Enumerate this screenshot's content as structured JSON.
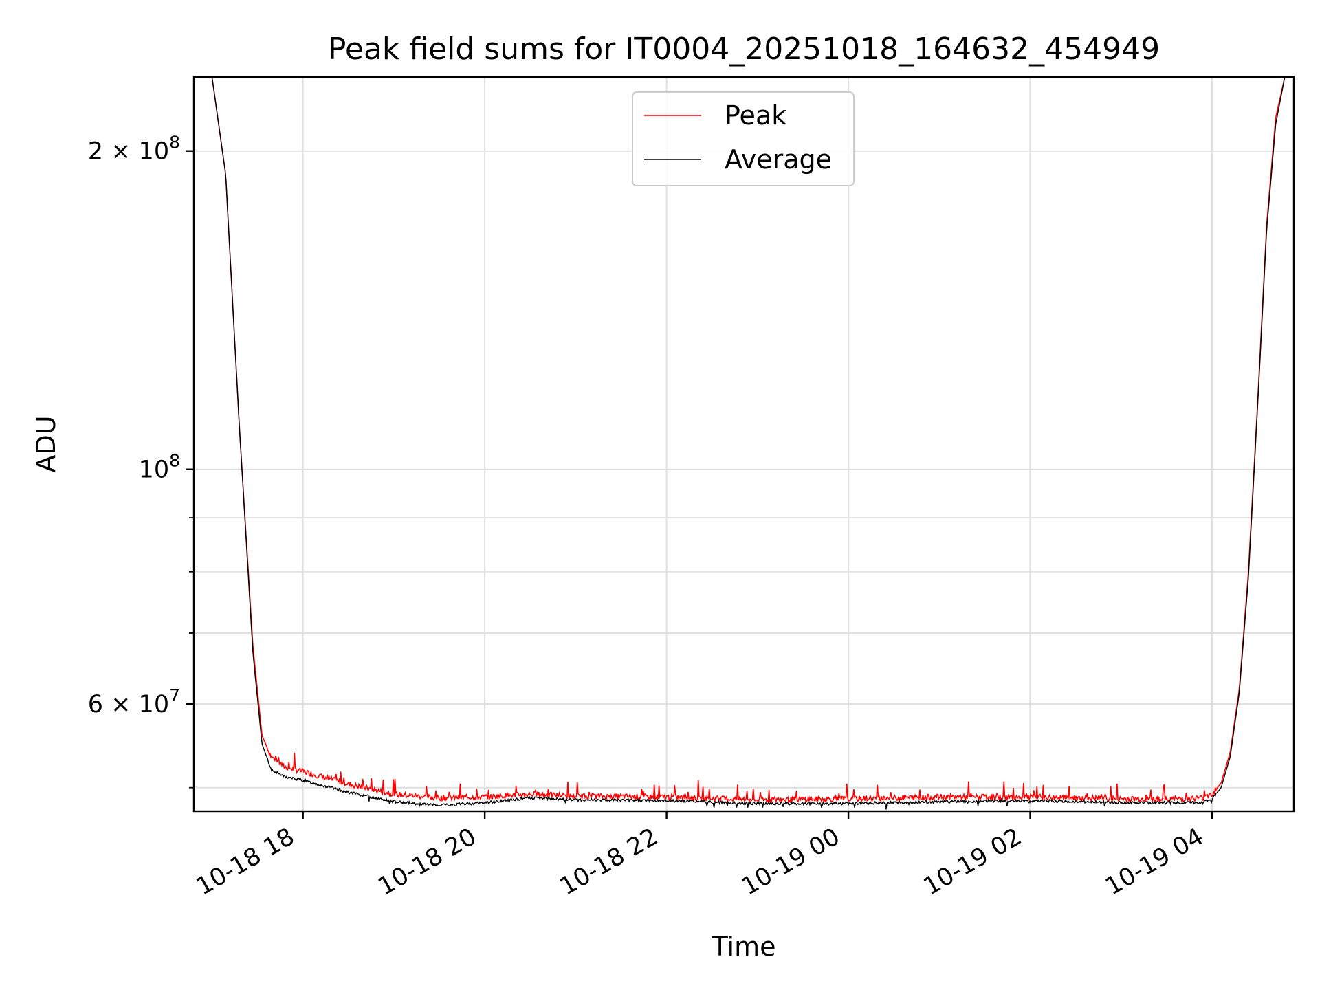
{
  "chart_data": {
    "type": "line",
    "title": "Peak field sums for IT0004_20251018_164632_454949",
    "xlabel": "Time",
    "ylabel": "ADU",
    "yscale": "log",
    "ylim": [
      47500000,
      235000000
    ],
    "xlim_hours": [
      16.8,
      28.9
    ],
    "grid": true,
    "legend_position": "upper center",
    "x_ticks": [
      {
        "label": "10-18 18",
        "hour": 18
      },
      {
        "label": "10-18 20",
        "hour": 20
      },
      {
        "label": "10-18 22",
        "hour": 22
      },
      {
        "label": "10-19 00",
        "hour": 24
      },
      {
        "label": "10-19 02",
        "hour": 26
      },
      {
        "label": "10-19 04",
        "hour": 28
      }
    ],
    "y_ticks": [
      {
        "label": "2 × 10⁸",
        "base": "2 × 10",
        "exp": "8",
        "value": 200000000
      },
      {
        "label": "10⁸",
        "base": "10",
        "exp": "8",
        "value": 100000000
      },
      {
        "label": "6 × 10⁷",
        "base": "6 × 10",
        "exp": "7",
        "value": 60000000
      }
    ],
    "y_minor_ticks": [
      50000000,
      70000000,
      80000000,
      90000000
    ],
    "series": [
      {
        "name": "Peak",
        "color": "#ff0000",
        "x_hours": [
          16.8,
          17.0,
          17.15,
          17.3,
          17.45,
          17.55,
          17.65,
          17.8,
          18.0,
          18.5,
          19.0,
          19.5,
          20.0,
          20.5,
          21.0,
          22.0,
          23.0,
          24.0,
          25.0,
          26.0,
          27.0,
          27.6,
          27.9,
          28.0,
          28.1,
          28.2,
          28.3,
          28.4,
          28.5,
          28.6,
          28.7,
          28.8,
          28.9
        ],
        "values": [
          235000000,
          235000000,
          190000000,
          110000000,
          68000000,
          56000000,
          53500000,
          52300000,
          51800000,
          50400000,
          49300000,
          48900000,
          49000000,
          49300000,
          49100000,
          49000000,
          48700000,
          48800000,
          49000000,
          49000000,
          48800000,
          48800000,
          48900000,
          49300000,
          50500000,
          54000000,
          62000000,
          80000000,
          115000000,
          170000000,
          215000000,
          235000000,
          235000000
        ]
      },
      {
        "name": "Average",
        "color": "#000000",
        "x_hours": [
          16.8,
          17.0,
          17.15,
          17.3,
          17.45,
          17.55,
          17.65,
          17.8,
          18.0,
          18.5,
          19.0,
          19.5,
          20.0,
          20.5,
          21.0,
          22.0,
          23.0,
          24.0,
          25.0,
          26.0,
          27.0,
          27.6,
          27.9,
          28.0,
          28.1,
          28.2,
          28.3,
          28.4,
          28.5,
          28.6,
          28.7,
          28.8,
          28.9
        ],
        "values": [
          235000000,
          235000000,
          190000000,
          110000000,
          67000000,
          55000000,
          52000000,
          51200000,
          50800000,
          49500000,
          48500000,
          48100000,
          48400000,
          48900000,
          48700000,
          48600000,
          48300000,
          48300000,
          48500000,
          48600000,
          48400000,
          48400000,
          48400000,
          48800000,
          50000000,
          53500000,
          61500000,
          79000000,
          114000000,
          168000000,
          212000000,
          235000000,
          235000000
        ]
      }
    ]
  }
}
